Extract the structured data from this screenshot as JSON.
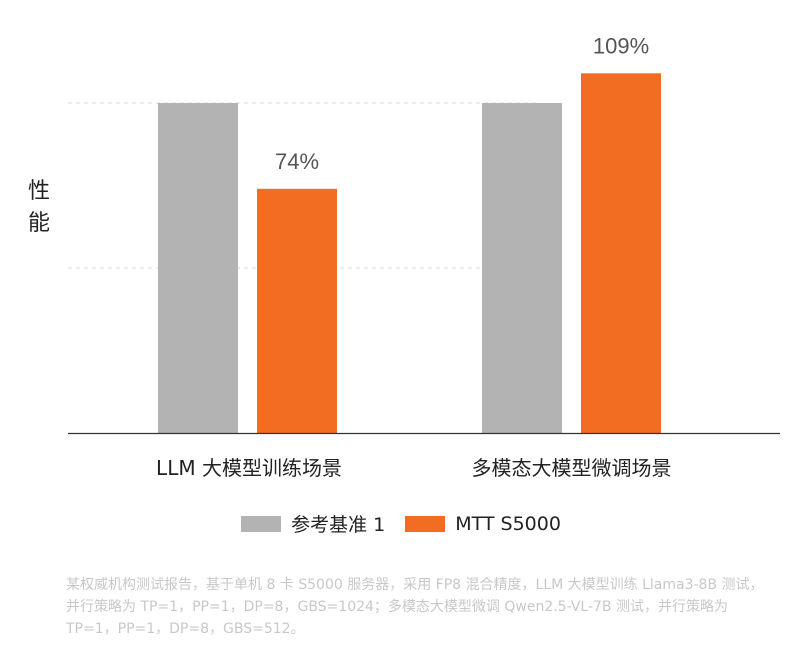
{
  "chart_data": {
    "type": "bar",
    "categories": [
      "LLM 大模型训练场景",
      "多模态大模型微调场景"
    ],
    "series": [
      {
        "name": "参考基准 1",
        "color": "#b3b3b3",
        "values": [
          1,
          1
        ],
        "labels": [
          "",
          ""
        ]
      },
      {
        "name": "MTT S5000",
        "color": "#f26c21",
        "values": [
          0.74,
          1.09
        ],
        "labels": [
          "74%",
          "109%"
        ]
      }
    ],
    "ylabel": "性能",
    "ylim": [
      0,
      1.2
    ],
    "grid": true,
    "legend_position": "bottom"
  },
  "footnote": "某权威机构测试报告，基于单机 8 卡 S5000 服务器，采用 FP8 混合精度，LLM 大模型训练 Llama3-8B 测试，并行策略为 TP=1，PP=1，DP=8，GBS=1024；多模态大模型微调 Qwen2.5-VL-7B 测试，并行策略为 TP=1，PP=1，DP=8，GBS=512。"
}
